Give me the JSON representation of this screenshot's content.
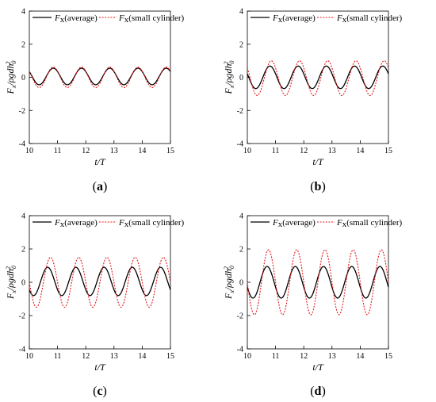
{
  "chart_data": [
    {
      "type": "line",
      "panel_label": "(a)",
      "xlabel": "t/T",
      "ylabel": "F_x/ρgdh_0^2",
      "xlim": [
        10,
        15
      ],
      "ylim": [
        -4,
        4
      ],
      "x_ticks": [
        10,
        11,
        12,
        13,
        14,
        15
      ],
      "y_ticks": [
        -4,
        -2,
        0,
        2,
        4
      ],
      "legend_position": "top",
      "series": [
        {
          "name": "Fx (average)",
          "style": "solid",
          "color": "#000000",
          "amplitude": 0.5,
          "offset": 0.05,
          "period": 1.0,
          "phase_peak_t": 10.85
        },
        {
          "name": "Fx (small cylinder)",
          "style": "dotted",
          "color": "#e41a1c",
          "amplitude": 0.62,
          "offset": 0.0,
          "period": 1.0,
          "phase_peak_t": 10.85
        }
      ]
    },
    {
      "type": "line",
      "panel_label": "(b)",
      "xlabel": "t/T",
      "ylabel": "F_x/ρgdh_0^2",
      "xlim": [
        10,
        15
      ],
      "ylim": [
        -4,
        4
      ],
      "x_ticks": [
        10,
        11,
        12,
        13,
        14,
        15
      ],
      "y_ticks": [
        -4,
        -2,
        0,
        2,
        4
      ],
      "legend_position": "top",
      "series": [
        {
          "name": "Fx (average)",
          "style": "solid",
          "color": "#000000",
          "amplitude": 0.68,
          "offset": 0.0,
          "period": 1.0,
          "phase_peak_t": 10.8
        },
        {
          "name": "Fx (small cylinder)",
          "style": "dotted",
          "color": "#e41a1c",
          "amplitude": 1.05,
          "offset": -0.05,
          "period": 1.0,
          "phase_peak_t": 10.85
        }
      ]
    },
    {
      "type": "line",
      "panel_label": "(c)",
      "xlabel": "t/T",
      "ylabel": "F_x/ρgdh_0^2",
      "xlim": [
        10,
        15
      ],
      "ylim": [
        -4,
        4
      ],
      "x_ticks": [
        10,
        11,
        12,
        13,
        14,
        15
      ],
      "y_ticks": [
        -4,
        -2,
        0,
        2,
        4
      ],
      "legend_position": "top",
      "series": [
        {
          "name": "Fx (average)",
          "style": "solid",
          "color": "#000000",
          "amplitude": 0.85,
          "offset": 0.05,
          "period": 1.0,
          "phase_peak_t": 10.65
        },
        {
          "name": "Fx (small cylinder)",
          "style": "dotted",
          "color": "#e41a1c",
          "amplitude": 1.5,
          "offset": 0.0,
          "period": 1.0,
          "phase_peak_t": 10.75
        }
      ]
    },
    {
      "type": "line",
      "panel_label": "(d)",
      "xlabel": "t/T",
      "ylabel": "F_x/ρgdh_0^2",
      "xlim": [
        10,
        15
      ],
      "ylim": [
        -4,
        4
      ],
      "x_ticks": [
        10,
        11,
        12,
        13,
        14,
        15
      ],
      "y_ticks": [
        -4,
        -2,
        0,
        2,
        4
      ],
      "legend_position": "top",
      "series": [
        {
          "name": "Fx (average)",
          "style": "solid",
          "color": "#000000",
          "amplitude": 0.95,
          "offset": 0.0,
          "period": 1.0,
          "phase_peak_t": 10.7
        },
        {
          "name": "Fx (small cylinder)",
          "style": "dotted",
          "color": "#e41a1c",
          "amplitude": 1.95,
          "offset": 0.0,
          "period": 1.0,
          "phase_peak_t": 10.75
        }
      ]
    }
  ],
  "legend": {
    "symbol_main": "F",
    "symbol_sub": "x",
    "average_label": "(average)",
    "small_label": "(small cylinder)"
  },
  "panel_labels": [
    {
      "open": "(",
      "letter": "a",
      "close": ")"
    },
    {
      "open": "(",
      "letter": "b",
      "close": ")"
    },
    {
      "open": "(",
      "letter": "c",
      "close": ")"
    },
    {
      "open": "(",
      "letter": "d",
      "close": ")"
    }
  ]
}
